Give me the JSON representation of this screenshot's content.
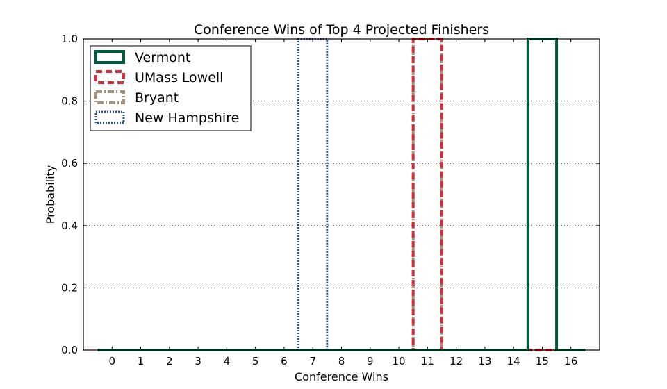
{
  "chart_data": {
    "type": "line",
    "title": "Conference Wins of Top 4 Projected Finishers",
    "xlabel": "Conference Wins",
    "ylabel": "Probability",
    "xlim": [
      -1,
      17
    ],
    "ylim": [
      0,
      1.0
    ],
    "x_ticks": [
      0,
      1,
      2,
      3,
      4,
      5,
      6,
      7,
      8,
      9,
      10,
      11,
      12,
      13,
      14,
      15,
      16
    ],
    "y_ticks": [
      0.0,
      0.2,
      0.4,
      0.6,
      0.8,
      1.0
    ],
    "y_tick_labels": [
      "0.0",
      "0.2",
      "0.4",
      "0.6",
      "0.8",
      "1.0"
    ],
    "grid": {
      "y": true,
      "x": false,
      "style": "dotted"
    },
    "legend_position": "top-left",
    "step_style": "histogram-step",
    "categories": [
      0,
      1,
      2,
      3,
      4,
      5,
      6,
      7,
      8,
      9,
      10,
      11,
      12,
      13,
      14,
      15,
      16
    ],
    "series": [
      {
        "name": "Vermont",
        "color": "#005a3c",
        "dash": "solid",
        "values": [
          0,
          0,
          0,
          0,
          0,
          0,
          0,
          0,
          0,
          0,
          0,
          0,
          0,
          0,
          0,
          1.0,
          0
        ]
      },
      {
        "name": "UMass Lowell",
        "color": "#d22e3c",
        "dash": "dashed",
        "values": [
          0,
          0,
          0,
          0,
          0,
          0,
          0,
          0,
          0,
          0,
          0,
          1.0,
          0,
          0,
          0,
          0,
          0
        ]
      },
      {
        "name": "Bryant",
        "color": "#a6937d",
        "dash": "dash-dot",
        "values": [
          0,
          0,
          0,
          0,
          0,
          0,
          0,
          0,
          0,
          0,
          0,
          1.0,
          0,
          0,
          0,
          0,
          0
        ]
      },
      {
        "name": "New Hampshire",
        "color": "#27508f",
        "dash": "dotted",
        "values": [
          0,
          0,
          0,
          0,
          0,
          0,
          0,
          1.0,
          0,
          0,
          0,
          0,
          0,
          0,
          0,
          0,
          0
        ]
      }
    ]
  }
}
